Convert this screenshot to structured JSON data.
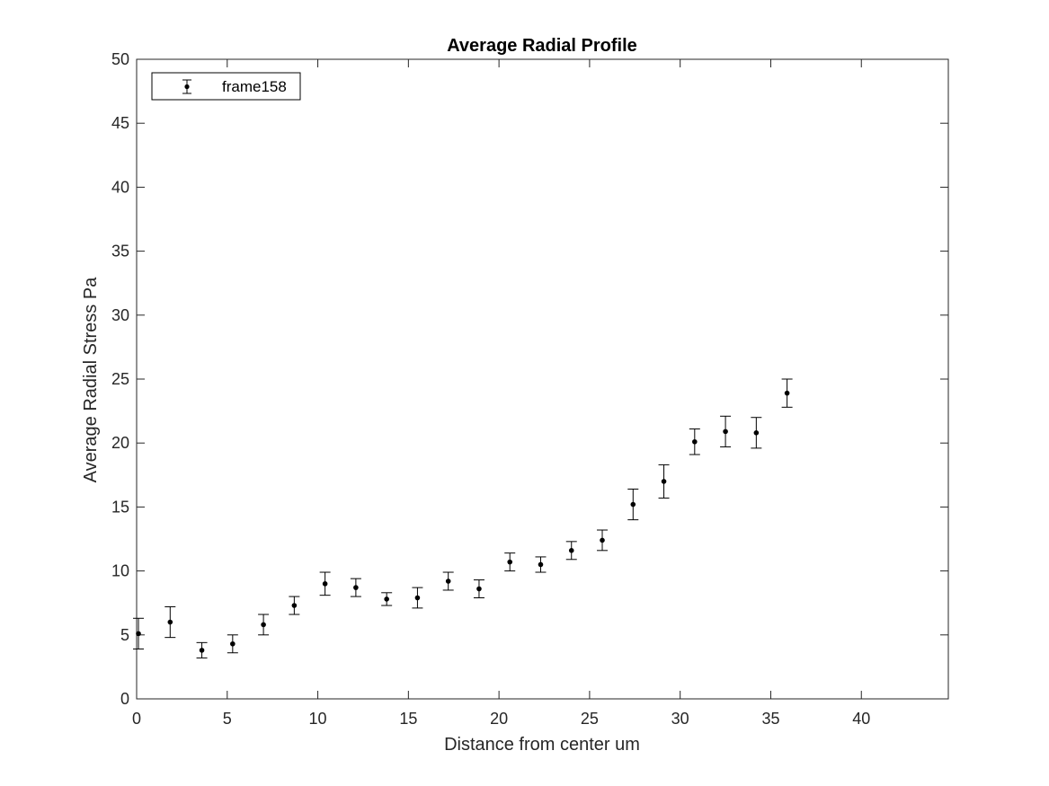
{
  "chart_data": {
    "type": "scatter",
    "title": "Average Radial Profile",
    "xlabel": "Distance from center um",
    "ylabel": "Average Radial Stress Pa",
    "xlim": [
      0,
      44.8
    ],
    "ylim": [
      0,
      50
    ],
    "xticks": [
      0,
      5,
      10,
      15,
      20,
      25,
      30,
      35,
      40
    ],
    "yticks": [
      0,
      5,
      10,
      15,
      20,
      25,
      30,
      35,
      40,
      45,
      50
    ],
    "grid": false,
    "legend_position": "top-left",
    "series": [
      {
        "name": "frame158",
        "color": "#000000",
        "marker": "dot",
        "error_bars": true,
        "x": [
          0.1,
          1.85,
          3.6,
          5.3,
          7.0,
          8.7,
          10.4,
          12.1,
          13.8,
          15.5,
          17.2,
          18.9,
          20.6,
          22.3,
          24.0,
          25.7,
          27.4,
          29.1,
          30.8,
          32.5,
          34.2,
          35.9
        ],
        "y": [
          5.1,
          6.0,
          3.8,
          4.3,
          5.8,
          7.3,
          9.0,
          8.7,
          7.8,
          7.9,
          9.2,
          8.6,
          10.7,
          10.5,
          11.6,
          12.4,
          15.2,
          17.0,
          20.1,
          20.9,
          20.8,
          23.9
        ],
        "error": [
          1.2,
          1.2,
          0.6,
          0.7,
          0.8,
          0.7,
          0.9,
          0.7,
          0.5,
          0.8,
          0.7,
          0.7,
          0.7,
          0.6,
          0.7,
          0.8,
          1.2,
          1.3,
          1.0,
          1.2,
          1.2,
          1.1
        ]
      }
    ]
  }
}
